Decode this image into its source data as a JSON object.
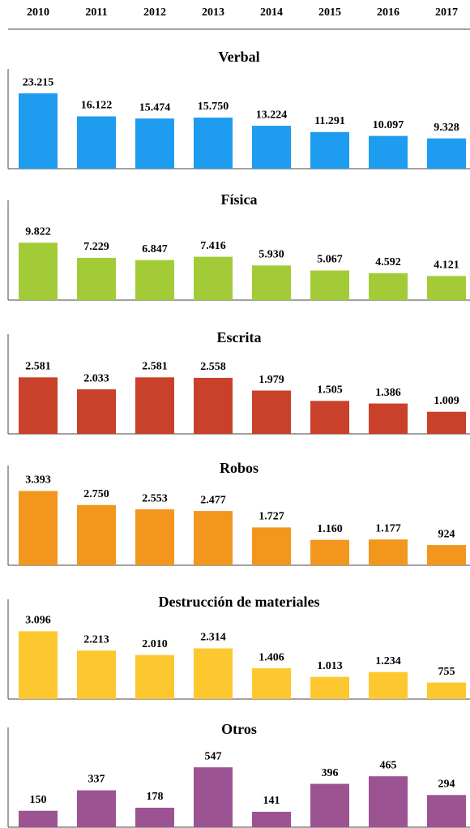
{
  "header": {
    "categories": [
      "2010",
      "2011",
      "2012",
      "2013",
      "2014",
      "2015",
      "2016",
      "2017"
    ]
  },
  "chart_data": [
    {
      "type": "bar",
      "title": "Verbal",
      "color": "#1e9cf0",
      "ylim": [
        0,
        27000
      ],
      "values": [
        23215,
        16122,
        15474,
        15750,
        13224,
        11291,
        10097,
        9328
      ],
      "value_labels": [
        "23.215",
        "16.122",
        "15.474",
        "15.750",
        "13.224",
        "11.291",
        "10.097",
        "9.328"
      ]
    },
    {
      "type": "bar",
      "title": "Física",
      "color": "#a3cb38",
      "ylim": [
        0,
        15000
      ],
      "values": [
        9822,
        7229,
        6847,
        7416,
        5930,
        5067,
        4592,
        4121
      ],
      "value_labels": [
        "9.822",
        "7.229",
        "6.847",
        "7.416",
        "5.930",
        "5.067",
        "4.592",
        "4.121"
      ]
    },
    {
      "type": "bar",
      "title": "Escrita",
      "color": "#c9402b",
      "ylim": [
        0,
        4000
      ],
      "values": [
        2581,
        2033,
        2581,
        2558,
        1979,
        1505,
        1386,
        1009
      ],
      "value_labels": [
        "2.581",
        "2.033",
        "2.581",
        "2.558",
        "1.979",
        "1.505",
        "1.386",
        "1.009"
      ]
    },
    {
      "type": "bar",
      "title": "Robos",
      "color": "#f3961e",
      "ylim": [
        0,
        4000
      ],
      "values": [
        3393,
        2750,
        2553,
        2477,
        1727,
        1160,
        1177,
        924
      ],
      "value_labels": [
        "3.393",
        "2.750",
        "2.553",
        "2.477",
        "1.727",
        "1.160",
        "1.177",
        "924"
      ]
    },
    {
      "type": "bar",
      "title": "Destrucción de materiales",
      "color": "#fdc82f",
      "ylim": [
        0,
        4000
      ],
      "values": [
        3096,
        2213,
        2010,
        2314,
        1406,
        1013,
        1234,
        755
      ],
      "value_labels": [
        "3.096",
        "2.213",
        "2.010",
        "2.314",
        "1.406",
        "1.013",
        "1.234",
        "755"
      ]
    },
    {
      "type": "bar",
      "title": "Otros",
      "color": "#9c5392",
      "ylim": [
        0,
        800
      ],
      "values": [
        150,
        337,
        178,
        547,
        141,
        396,
        465,
        294
      ],
      "value_labels": [
        "150",
        "337",
        "178",
        "547",
        "141",
        "396",
        "465",
        "294"
      ]
    }
  ]
}
